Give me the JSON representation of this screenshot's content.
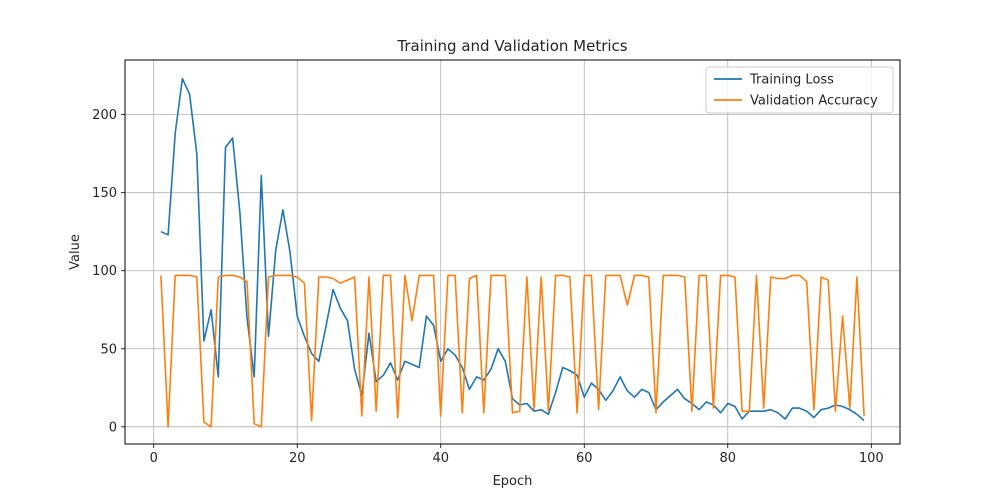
{
  "chart_data": {
    "type": "line",
    "title": "Training and Validation Metrics",
    "xlabel": "Epoch",
    "ylabel": "Value",
    "xlim": [
      -4,
      104
    ],
    "ylim": [
      -11,
      235
    ],
    "xticks": [
      0,
      20,
      40,
      60,
      80,
      100
    ],
    "yticks": [
      0,
      50,
      100,
      150,
      200
    ],
    "grid": true,
    "legend_position": "top-right",
    "series": [
      {
        "name": "Training Loss",
        "color": "#1f77b4",
        "x": [
          1,
          2,
          3,
          4,
          5,
          6,
          7,
          8,
          9,
          10,
          11,
          12,
          13,
          14,
          15,
          16,
          17,
          18,
          19,
          20,
          21,
          22,
          23,
          24,
          25,
          26,
          27,
          28,
          29,
          30,
          31,
          32,
          33,
          34,
          35,
          36,
          37,
          38,
          39,
          40,
          41,
          42,
          43,
          44,
          45,
          46,
          47,
          48,
          49,
          50,
          51,
          52,
          53,
          54,
          55,
          56,
          57,
          58,
          59,
          60,
          61,
          62,
          63,
          64,
          65,
          66,
          67,
          68,
          69,
          70,
          71,
          72,
          73,
          74,
          75,
          76,
          77,
          78,
          79,
          80,
          81,
          82,
          83,
          84,
          85,
          86,
          87,
          88,
          89,
          90,
          91,
          92,
          93,
          94,
          95,
          96,
          97,
          98,
          99
        ],
        "values": [
          125,
          123,
          188,
          223,
          213,
          175,
          55,
          75,
          32,
          179,
          185,
          138,
          70,
          32,
          161,
          58,
          113,
          139,
          112,
          71,
          58,
          47,
          42,
          64,
          88,
          76,
          68,
          37,
          20,
          60,
          29,
          33,
          41,
          30,
          42,
          40,
          38,
          71,
          65,
          42,
          50,
          46,
          38,
          24,
          32,
          30,
          37,
          50,
          42,
          18,
          14,
          15,
          10,
          11,
          8,
          22,
          38,
          36,
          33,
          19,
          28,
          24,
          17,
          23,
          32,
          23,
          19,
          24,
          22,
          11,
          16,
          20,
          24,
          18,
          15,
          11,
          16,
          14,
          9,
          15,
          13,
          5,
          10,
          10,
          10,
          11,
          9,
          5,
          12,
          12,
          10,
          6,
          11,
          12,
          14,
          13,
          11,
          8,
          4
        ]
      },
      {
        "name": "Validation Accuracy",
        "color": "#ff7f0e",
        "x": [
          1,
          2,
          3,
          4,
          5,
          6,
          7,
          8,
          9,
          10,
          11,
          12,
          13,
          14,
          15,
          16,
          17,
          18,
          19,
          20,
          21,
          22,
          23,
          24,
          25,
          26,
          27,
          28,
          29,
          30,
          31,
          32,
          33,
          34,
          35,
          36,
          37,
          38,
          39,
          40,
          41,
          42,
          43,
          44,
          45,
          46,
          47,
          48,
          49,
          50,
          51,
          52,
          53,
          54,
          55,
          56,
          57,
          58,
          59,
          60,
          61,
          62,
          63,
          64,
          65,
          66,
          67,
          68,
          69,
          70,
          71,
          72,
          73,
          74,
          75,
          76,
          77,
          78,
          79,
          80,
          81,
          82,
          83,
          84,
          85,
          86,
          87,
          88,
          89,
          90,
          91,
          92,
          93,
          94,
          95,
          96,
          97,
          98,
          99
        ],
        "values": [
          97,
          0,
          97,
          97,
          97,
          96,
          3,
          0,
          96,
          97,
          97,
          96,
          93,
          2,
          0,
          96,
          97,
          97,
          97,
          96,
          92,
          4,
          96,
          96,
          95,
          92,
          94,
          96,
          7,
          96,
          10,
          97,
          97,
          6,
          97,
          68,
          97,
          97,
          97,
          7,
          97,
          97,
          9,
          95,
          97,
          9,
          97,
          97,
          97,
          9,
          10,
          96,
          11,
          96,
          10,
          97,
          97,
          96,
          9,
          97,
          97,
          11,
          97,
          97,
          97,
          78,
          97,
          97,
          96,
          9,
          97,
          97,
          97,
          96,
          10,
          97,
          97,
          12,
          97,
          97,
          96,
          10,
          10,
          97,
          12,
          96,
          95,
          95,
          97,
          97,
          93,
          11,
          96,
          94,
          10,
          71,
          12,
          96,
          7
        ]
      }
    ]
  }
}
